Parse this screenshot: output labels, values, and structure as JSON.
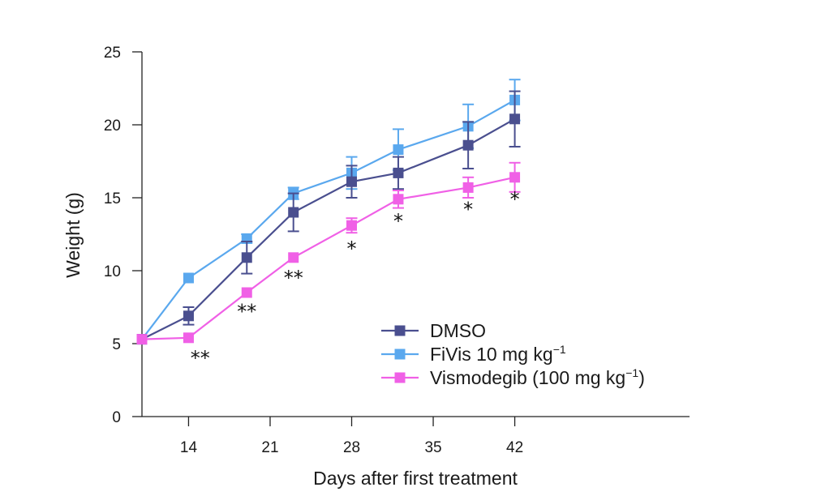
{
  "chart_data": {
    "type": "line",
    "title": "",
    "xlabel": "Days after first treatment",
    "ylabel": "Weight (g)",
    "xlim": [
      10,
      57
    ],
    "ylim": [
      0,
      25
    ],
    "xticks": [
      14,
      21,
      28,
      35,
      42
    ],
    "yticks": [
      0,
      5,
      10,
      15,
      20,
      25
    ],
    "xtick_labels": [
      "14",
      "21",
      "28",
      "35",
      "42"
    ],
    "ytick_labels": [
      "0",
      "5",
      "10",
      "15",
      "20",
      "25"
    ],
    "x": [
      10,
      14,
      19,
      23,
      28,
      32,
      38,
      42
    ],
    "legend_position": "center-right",
    "series": [
      {
        "name": "DMSO",
        "legend_main": "DMSO",
        "legend_sup": "",
        "legend_tail": "",
        "color": "#4a4f8f",
        "values": [
          5.3,
          6.9,
          10.9,
          14.0,
          16.1,
          16.7,
          18.6,
          20.4
        ],
        "errors": [
          0,
          0.6,
          1.1,
          1.3,
          1.1,
          1.1,
          1.6,
          1.9
        ]
      },
      {
        "name": "FiVis 10 mg kg−1",
        "legend_main": "FiVis 10 mg kg",
        "legend_sup": "−1",
        "legend_tail": "",
        "color": "#5aa8ee",
        "values": [
          5.3,
          9.5,
          12.2,
          15.3,
          16.7,
          18.3,
          19.9,
          21.7
        ],
        "errors": [
          0,
          0,
          0.3,
          0.4,
          1.1,
          1.4,
          1.5,
          1.4
        ]
      },
      {
        "name": "Vismodegib (100 mg kg−1)",
        "legend_main": "Vismodegib (100 mg kg",
        "legend_sup": "−1",
        "legend_tail": ")",
        "color": "#f060e6",
        "values": [
          5.3,
          5.4,
          8.5,
          10.9,
          13.1,
          14.9,
          15.7,
          16.4
        ],
        "errors": [
          0,
          0,
          0,
          0,
          0.5,
          0.6,
          0.7,
          1.0
        ]
      }
    ],
    "annotations": [
      {
        "x": 15,
        "y": 4.0,
        "text": "**"
      },
      {
        "x": 19,
        "y": 7.2,
        "text": "**"
      },
      {
        "x": 23,
        "y": 9.5,
        "text": "**"
      },
      {
        "x": 28,
        "y": 11.5,
        "text": "*"
      },
      {
        "x": 32,
        "y": 13.4,
        "text": "*"
      },
      {
        "x": 38,
        "y": 14.2,
        "text": "*"
      },
      {
        "x": 42,
        "y": 14.9,
        "text": "*"
      }
    ]
  }
}
